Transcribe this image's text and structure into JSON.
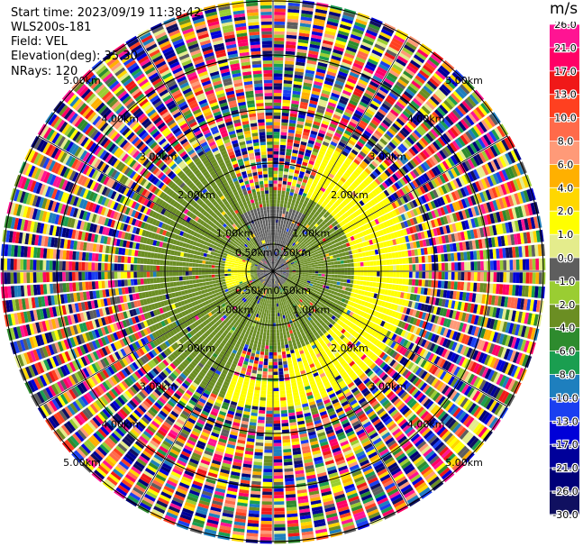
{
  "info": {
    "start_time": "Start time: 2023/09/19 11:38:42",
    "instrument": "WLS200s-181",
    "field": "Field: VEL",
    "elevation": "Elevation(deg): 35.30",
    "nrays": "NRays: 120"
  },
  "chart_data": {
    "type": "heatmap",
    "projection": "polar-ppi",
    "field": "VEL",
    "unit": "m/s",
    "n_rays": 120,
    "range_rings_km": [
      0.5,
      1.0,
      2.0,
      3.0,
      4.0,
      5.0
    ],
    "range_labels": [
      "0.50km",
      "1.00km",
      "2.00km",
      "3.00km",
      "4.00km",
      "5.00km"
    ],
    "spokes_deg": [
      0,
      30,
      60,
      90,
      120,
      150,
      180,
      210,
      240,
      270,
      300,
      330
    ],
    "colorbar": {
      "ticks": [
        "26.0",
        "21.0",
        "17.0",
        "13.0",
        "10.0",
        "8.0",
        "6.0",
        "4.0",
        "2.0",
        "1.0",
        "0.0",
        "-1.0",
        "-2.0",
        "-4.0",
        "-6.0",
        "-8.0",
        "-10.0",
        "-13.0",
        "-17.0",
        "-21.0",
        "-26.0",
        "-30.0"
      ],
      "colors": [
        "#ff1493",
        "#ff0066",
        "#f01818",
        "#ff4020",
        "#ff6a4a",
        "#ff9a78",
        "#ffb000",
        "#ffd700",
        "#ffff00",
        "#e4ec8c",
        "#5e5e5e",
        "#9acd32",
        "#6b8e23",
        "#2e8b2e",
        "#1a9e50",
        "#1e7fbe",
        "#1a3ff0",
        "#0000d8",
        "#00009a",
        "#000078",
        "#101060"
      ]
    },
    "regions": [
      {
        "range_km": [
          0.0,
          0.25
        ],
        "value": 0.0
      },
      {
        "range_km": [
          0.25,
          1.2
        ],
        "az_deg": [
          330,
          30
        ],
        "value": 0.0
      },
      {
        "range_km": [
          0.5,
          1.2
        ],
        "az_deg": [
          60,
          120
        ],
        "value": -2.0
      },
      {
        "range_km": [
          0.4,
          0.9
        ],
        "az_deg": [
          250,
          290
        ],
        "value": 2.0
      },
      {
        "range_km": [
          1.5,
          2.5
        ],
        "az_deg": [
          20,
          170
        ],
        "value": 2.0
      },
      {
        "range_km": [
          1.5,
          2.8
        ],
        "az_deg": [
          200,
          340
        ],
        "value": -2.0
      },
      {
        "range_km": [
          2.0,
          3.0
        ],
        "az_deg": [
          150,
          200
        ],
        "value": 2.0
      },
      {
        "range_km": [
          2.5,
          5.0
        ],
        "value": "noise"
      }
    ]
  }
}
